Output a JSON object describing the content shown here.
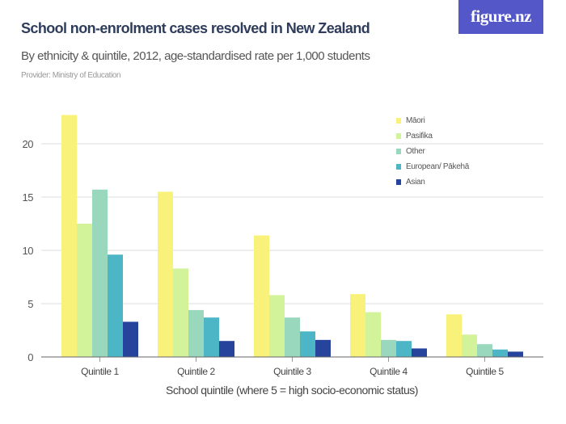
{
  "header": {
    "title": "School non-enrolment cases resolved in New Zealand",
    "subtitle": "By ethnicity & quintile, 2012, age-standardised rate per 1,000 students",
    "provider": "Provider: Ministry of Education",
    "logo": "figure.nz",
    "logo_color": "#5457c8"
  },
  "chart_data": {
    "type": "bar",
    "title": "School non-enrolment cases resolved in New Zealand",
    "xlabel": "School quintile (where 5 = high socio-economic status)",
    "ylabel": "",
    "ylim": [
      0,
      23
    ],
    "yticks": [
      0,
      5,
      10,
      15,
      20
    ],
    "grid": true,
    "legend_position": "top-right",
    "categories": [
      "Quintile 1",
      "Quintile 2",
      "Quintile 3",
      "Quintile 4",
      "Quintile 5"
    ],
    "series": [
      {
        "name": "Māori",
        "color": "#f9f27a",
        "values": [
          22.7,
          15.5,
          11.4,
          5.9,
          4.0
        ]
      },
      {
        "name": "Pasifika",
        "color": "#d3f39a",
        "values": [
          12.5,
          8.3,
          5.8,
          4.2,
          2.1
        ]
      },
      {
        "name": "Other",
        "color": "#9ad8bd",
        "values": [
          15.7,
          4.4,
          3.7,
          1.6,
          1.2
        ]
      },
      {
        "name": "European/ Pākehā",
        "color": "#4db6c6",
        "values": [
          9.6,
          3.7,
          2.4,
          1.5,
          0.7
        ]
      },
      {
        "name": "Asian",
        "color": "#26449c",
        "values": [
          3.3,
          1.5,
          1.6,
          0.8,
          0.5
        ]
      }
    ]
  }
}
